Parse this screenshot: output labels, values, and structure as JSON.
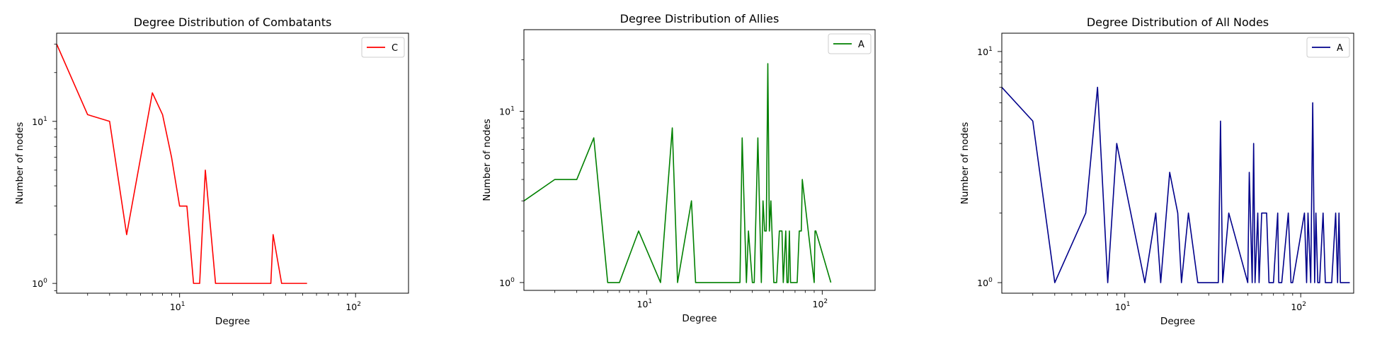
{
  "chart_data": [
    {
      "type": "line",
      "title": "Degree Distribution of Combatants",
      "xlabel": "Degree",
      "ylabel": "Number of nodes",
      "xscale": "log",
      "yscale": "log",
      "xlim": [
        2,
        200
      ],
      "ylim": [
        0.87,
        35
      ],
      "xticks": [
        {
          "label": "10",
          "exp": "1",
          "value": 10
        },
        {
          "label": "10",
          "exp": "2",
          "value": 100
        }
      ],
      "yticks": [
        {
          "label": "10",
          "exp": "0",
          "value": 1
        },
        {
          "label": "10",
          "exp": "1",
          "value": 10
        }
      ],
      "legend_position": "upper right",
      "grid": false,
      "series": [
        {
          "name": "C",
          "color": "#ff0000",
          "x": [
            2,
            3,
            4,
            5,
            7,
            8,
            9,
            10,
            11,
            12,
            13,
            14,
            16,
            33,
            34,
            38,
            53
          ],
          "y": [
            30,
            11,
            10,
            2,
            15,
            11,
            6,
            3,
            3,
            1,
            1,
            5,
            1,
            1,
            2,
            1,
            1
          ]
        }
      ]
    },
    {
      "type": "line",
      "title": "Degree Distribution of Allies",
      "xlabel": "Degree",
      "ylabel": "Number of nodes",
      "xscale": "log",
      "yscale": "log",
      "xlim": [
        2,
        200
      ],
      "ylim": [
        0.9,
        30
      ],
      "xticks": [
        {
          "label": "10",
          "exp": "1",
          "value": 10
        },
        {
          "label": "10",
          "exp": "2",
          "value": 100
        }
      ],
      "yticks": [
        {
          "label": "10",
          "exp": "0",
          "value": 1
        },
        {
          "label": "10",
          "exp": "1",
          "value": 10
        }
      ],
      "legend_position": "upper right",
      "grid": false,
      "series": [
        {
          "name": "A",
          "color": "#008000",
          "x": [
            2,
            3,
            4,
            5,
            6,
            7,
            9,
            12,
            14,
            15,
            18,
            19,
            34,
            35,
            37,
            38,
            40,
            41,
            43,
            45,
            46,
            47,
            48,
            49,
            50,
            51,
            53,
            55,
            57,
            59,
            60,
            62,
            63,
            64,
            65,
            66,
            72,
            74,
            76,
            77,
            90,
            91,
            92,
            112
          ],
          "y": [
            3,
            4,
            4,
            7,
            1,
            1,
            2,
            1,
            8,
            1,
            3,
            1,
            1,
            7,
            1,
            2,
            1,
            1,
            7,
            1,
            3,
            2,
            2,
            19,
            2,
            3,
            1,
            1,
            2,
            2,
            1,
            2,
            1,
            1,
            2,
            1,
            1,
            2,
            2,
            4,
            1,
            2,
            2,
            1
          ]
        }
      ]
    },
    {
      "type": "line",
      "title": "Degree Distribution of All Nodes",
      "xlabel": "Degree",
      "ylabel": "Number of nodes",
      "xscale": "log",
      "yscale": "log",
      "xlim": [
        2,
        200
      ],
      "ylim": [
        0.9,
        12
      ],
      "xticks": [
        {
          "label": "10",
          "exp": "1",
          "value": 10
        },
        {
          "label": "10",
          "exp": "2",
          "value": 100
        }
      ],
      "yticks": [
        {
          "label": "10",
          "exp": "0",
          "value": 1
        },
        {
          "label": "10",
          "exp": "1",
          "value": 10
        }
      ],
      "legend_position": "upper right",
      "grid": false,
      "series": [
        {
          "name": "A",
          "color": "#00008b",
          "x": [
            2,
            3,
            4,
            6,
            7,
            8,
            9,
            13,
            15,
            16,
            18,
            20,
            21,
            23,
            26,
            34,
            35,
            36,
            39,
            50,
            51,
            53,
            54,
            55,
            57,
            58,
            60,
            62,
            64,
            66,
            70,
            74,
            75,
            78,
            85,
            88,
            90,
            105,
            108,
            110,
            114,
            117,
            120,
            122,
            125,
            128,
            134,
            138,
            150,
            158,
            162,
            165,
            168,
            170,
            174,
            190
          ],
          "y": [
            7,
            5,
            1,
            2,
            7,
            1,
            4,
            1,
            2,
            1,
            3,
            2,
            1,
            2,
            1,
            1,
            5,
            1,
            2,
            1,
            3,
            1,
            4,
            1,
            2,
            1,
            2,
            2,
            2,
            1,
            1,
            2,
            1,
            1,
            2,
            1,
            1,
            2,
            1,
            2,
            1,
            6,
            1,
            2,
            1,
            1,
            2,
            1,
            1,
            2,
            1,
            2,
            1,
            1,
            1,
            1
          ]
        }
      ]
    }
  ]
}
